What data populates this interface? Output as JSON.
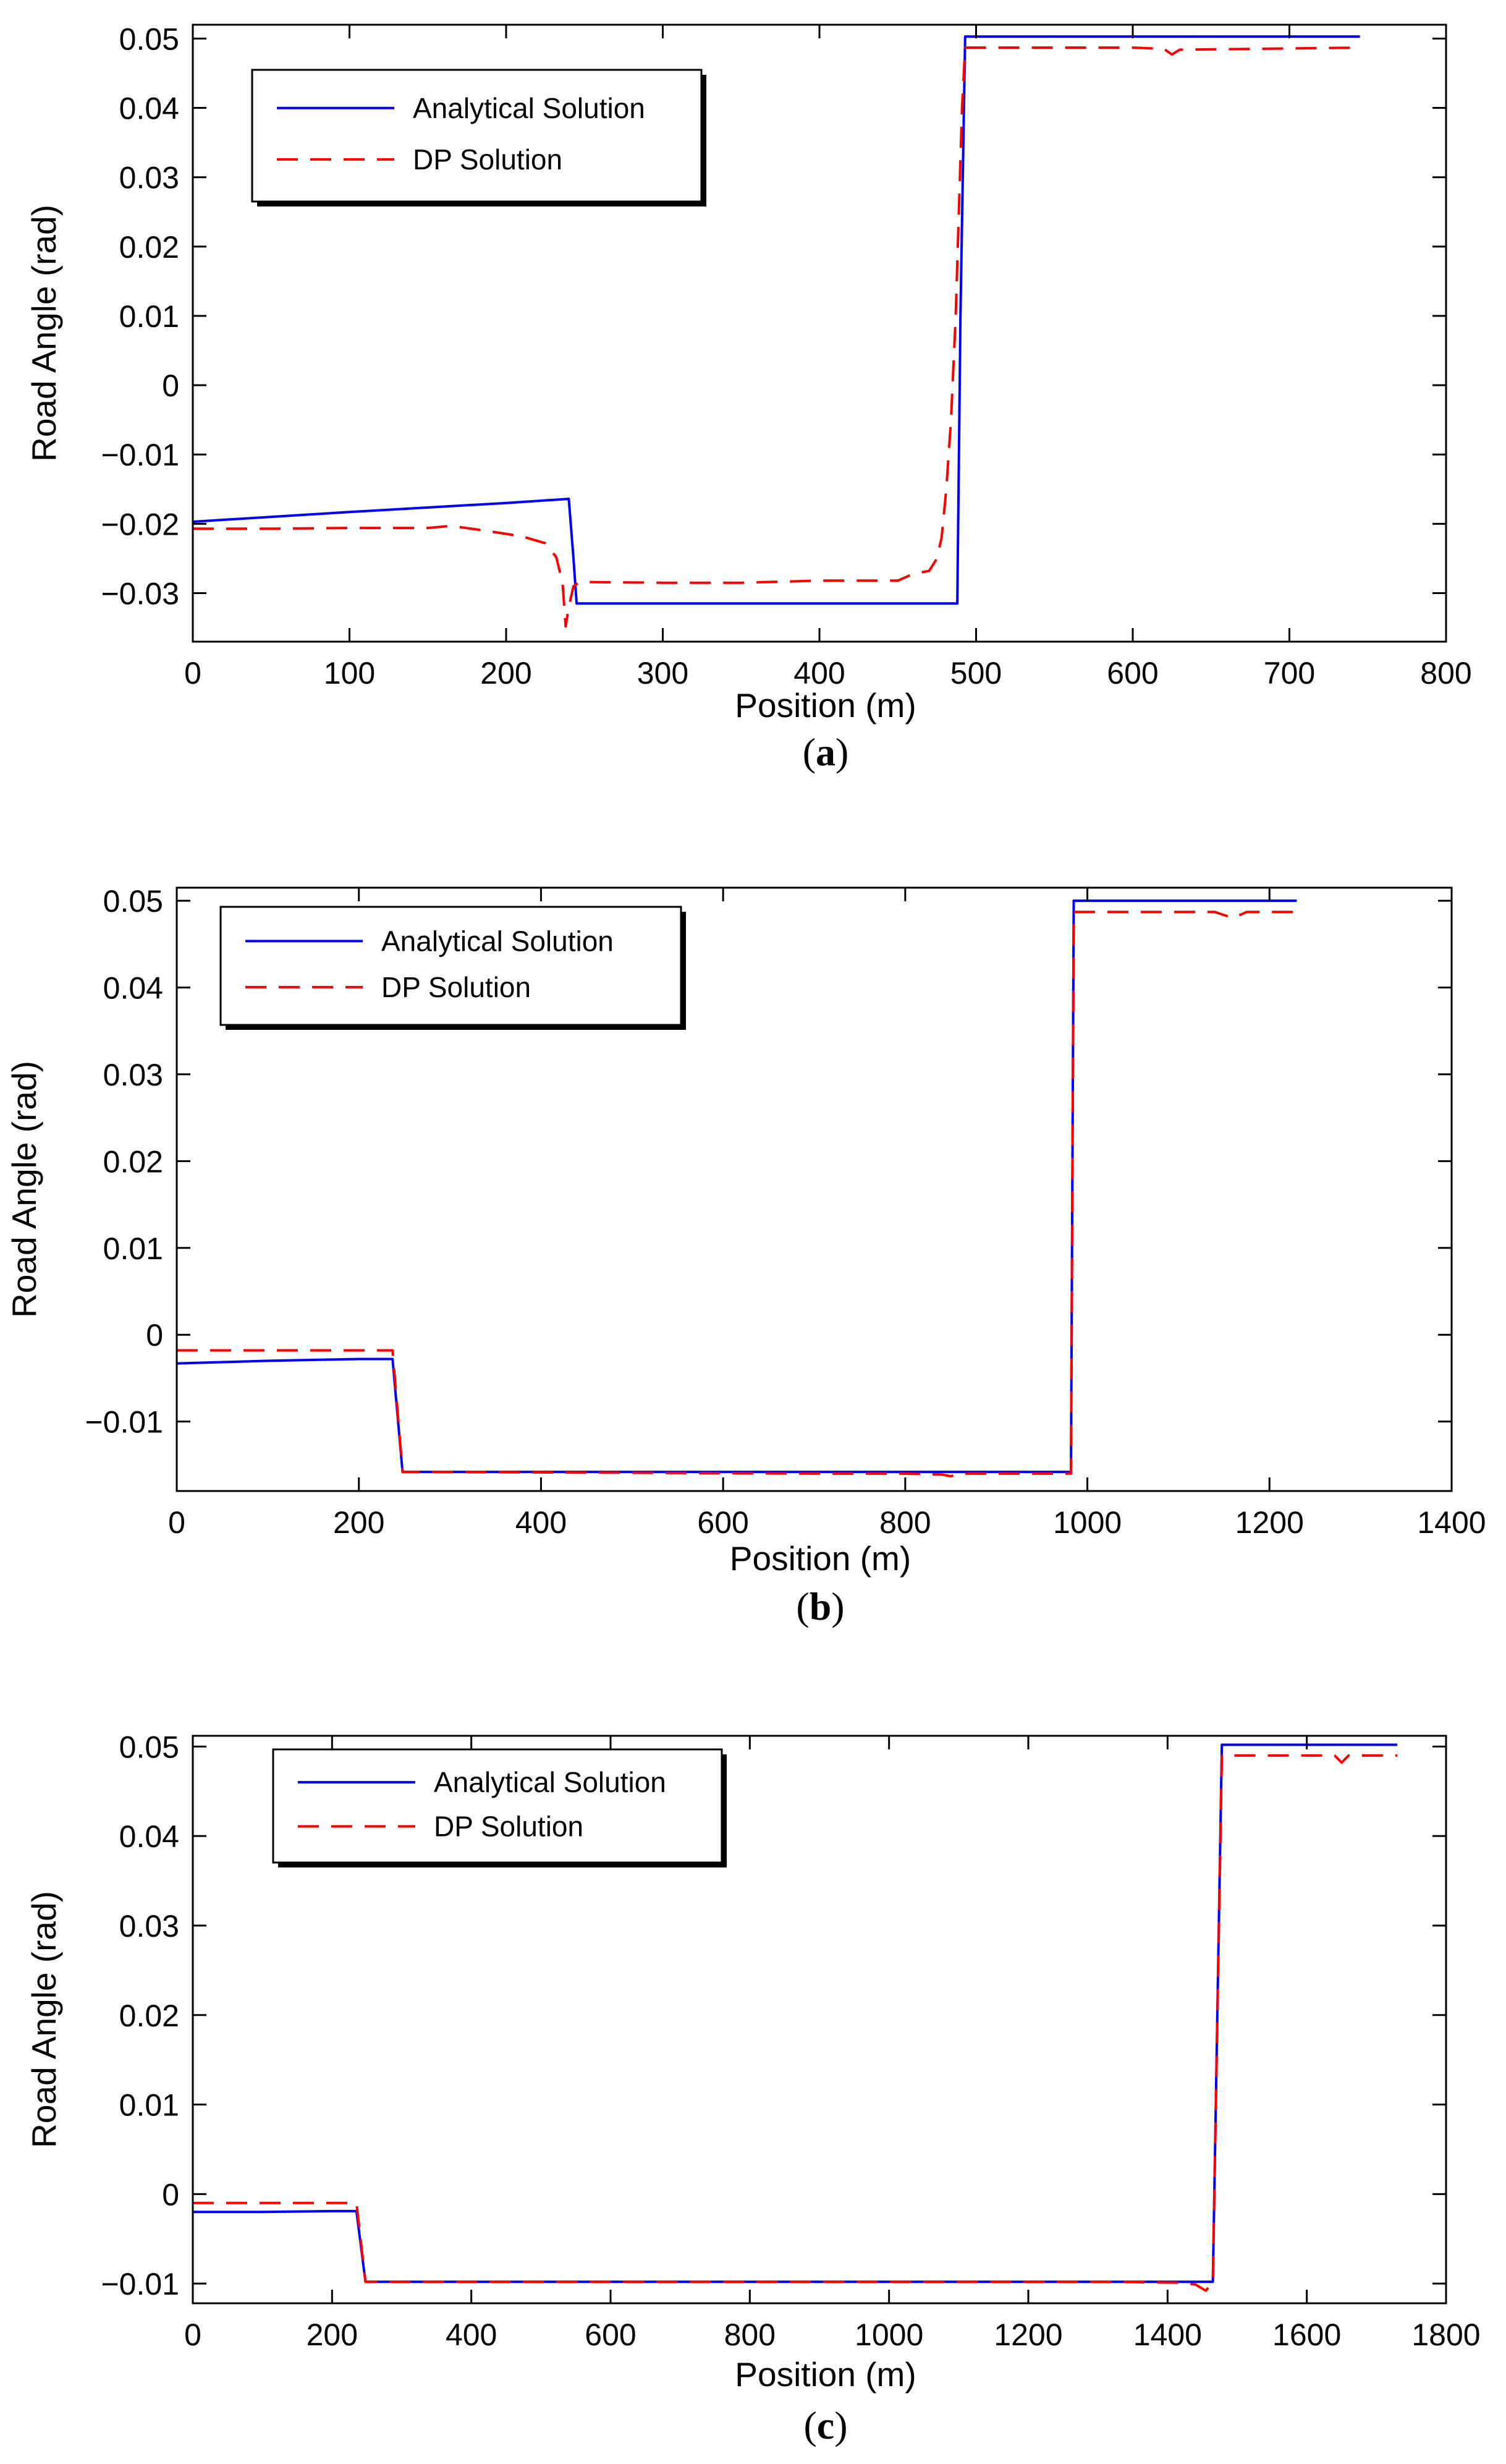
{
  "chart_data": [
    {
      "type": "line",
      "panel_label": "a",
      "xlabel": "Position (m)",
      "ylabel": "Road Angle (rad)",
      "xlim": [
        0,
        800
      ],
      "ylim": [
        -0.037,
        0.052
      ],
      "xticks": [
        0,
        100,
        200,
        300,
        400,
        500,
        600,
        700,
        800
      ],
      "yticks": [
        -0.03,
        -0.02,
        -0.01,
        0,
        0.01,
        0.02,
        0.03,
        0.04,
        0.05
      ],
      "ytick_labels": [
        "−0.03",
        "−0.02",
        "−0.01",
        "0",
        "0.01",
        "0.02",
        "0.03",
        "0.04",
        "0.05"
      ],
      "legend": {
        "position": "top-left",
        "entries": [
          "Analytical Solution",
          "DP Solution"
        ]
      },
      "series": [
        {
          "name": "Analytical Solution",
          "color": "#0000ff",
          "style": "solid",
          "x": [
            0,
            100,
            200,
            240,
            243,
            245,
            488,
            490,
            493,
            745
          ],
          "y": [
            -0.0197,
            -0.0183,
            -0.017,
            -0.0164,
            -0.025,
            -0.0315,
            -0.0315,
            0.01,
            0.0503,
            0.0503
          ]
        },
        {
          "name": "DP Solution",
          "color": "#ff0000",
          "style": "dashed",
          "x": [
            0,
            50,
            100,
            150,
            165,
            190,
            210,
            225,
            232,
            236,
            238,
            240,
            243,
            247,
            250,
            300,
            350,
            400,
            450,
            460,
            470,
            475,
            478,
            481,
            484,
            487,
            489,
            491,
            493,
            600,
            620,
            625,
            630,
            745
          ],
          "y": [
            -0.0207,
            -0.0207,
            -0.0206,
            -0.0206,
            -0.0203,
            -0.0211,
            -0.0218,
            -0.0228,
            -0.0248,
            -0.0285,
            -0.0348,
            -0.032,
            -0.029,
            -0.0284,
            -0.0284,
            -0.0285,
            -0.0285,
            -0.0282,
            -0.0282,
            -0.0272,
            -0.0268,
            -0.025,
            -0.022,
            -0.015,
            -0.005,
            0.01,
            0.025,
            0.04,
            0.0487,
            0.0487,
            0.0485,
            0.0477,
            0.0484,
            0.0487
          ]
        }
      ]
    },
    {
      "type": "line",
      "panel_label": "b",
      "xlabel": "Position (m)",
      "ylabel": "Road Angle (rad)",
      "xlim": [
        0,
        1400
      ],
      "ylim": [
        -0.018,
        0.0515
      ],
      "xticks": [
        0,
        200,
        400,
        600,
        800,
        1000,
        1200,
        1400
      ],
      "yticks": [
        -0.01,
        0,
        0.01,
        0.02,
        0.03,
        0.04,
        0.05
      ],
      "ytick_labels": [
        "−0.01",
        "0",
        "0.01",
        "0.02",
        "0.03",
        "0.04",
        "0.05"
      ],
      "legend": {
        "position": "top-left",
        "entries": [
          "Analytical Solution",
          "DP Solution"
        ]
      },
      "series": [
        {
          "name": "Analytical Solution",
          "color": "#0000ff",
          "style": "solid",
          "x": [
            0,
            100,
            200,
            237,
            248,
            982,
            985,
            1230
          ],
          "y": [
            -0.0033,
            -0.003,
            -0.0028,
            -0.0028,
            -0.0158,
            -0.0158,
            0.05,
            0.05
          ]
        },
        {
          "name": "DP Solution",
          "color": "#ff0000",
          "style": "dashed",
          "x": [
            0,
            237,
            248,
            500,
            700,
            800,
            840,
            850,
            860,
            982,
            985,
            1140,
            1160,
            1175,
            1230
          ],
          "y": [
            -0.0018,
            -0.0018,
            -0.0158,
            -0.0159,
            -0.016,
            -0.016,
            -0.0161,
            -0.0163,
            -0.016,
            -0.016,
            0.0487,
            0.0487,
            0.048,
            0.0487,
            0.0487
          ]
        }
      ]
    },
    {
      "type": "line",
      "panel_label": "c",
      "xlabel": "Position (m)",
      "ylabel": "Road Angle (rad)",
      "xlim": [
        0,
        1800
      ],
      "ylim": [
        -0.0122,
        0.0512
      ],
      "xticks": [
        0,
        200,
        400,
        600,
        800,
        1000,
        1200,
        1400,
        1600,
        1800
      ],
      "yticks": [
        -0.01,
        0,
        0.01,
        0.02,
        0.03,
        0.04,
        0.05
      ],
      "ytick_labels": [
        "−0.01",
        "0",
        "0.01",
        "0.02",
        "0.03",
        "0.04",
        "0.05"
      ],
      "legend": {
        "position": "top-left",
        "entries": [
          "Analytical Solution",
          "DP Solution"
        ]
      },
      "series": [
        {
          "name": "Analytical Solution",
          "color": "#0000ff",
          "style": "solid",
          "x": [
            0,
            100,
            200,
            235,
            248,
            1465,
            1478,
            1730
          ],
          "y": [
            -0.002,
            -0.002,
            -0.0019,
            -0.0019,
            -0.0098,
            -0.0098,
            0.0502,
            0.0502
          ]
        },
        {
          "name": "DP Solution",
          "color": "#ff0000",
          "style": "dashed",
          "x": [
            0,
            100,
            235,
            248,
            1300,
            1420,
            1440,
            1455,
            1465,
            1478,
            1640,
            1650,
            1660,
            1730
          ],
          "y": [
            -0.001,
            -0.001,
            -0.001,
            -0.0098,
            -0.0098,
            -0.0099,
            -0.0101,
            -0.0108,
            -0.0098,
            0.049,
            0.049,
            0.0482,
            0.049,
            0.049
          ]
        }
      ]
    }
  ]
}
